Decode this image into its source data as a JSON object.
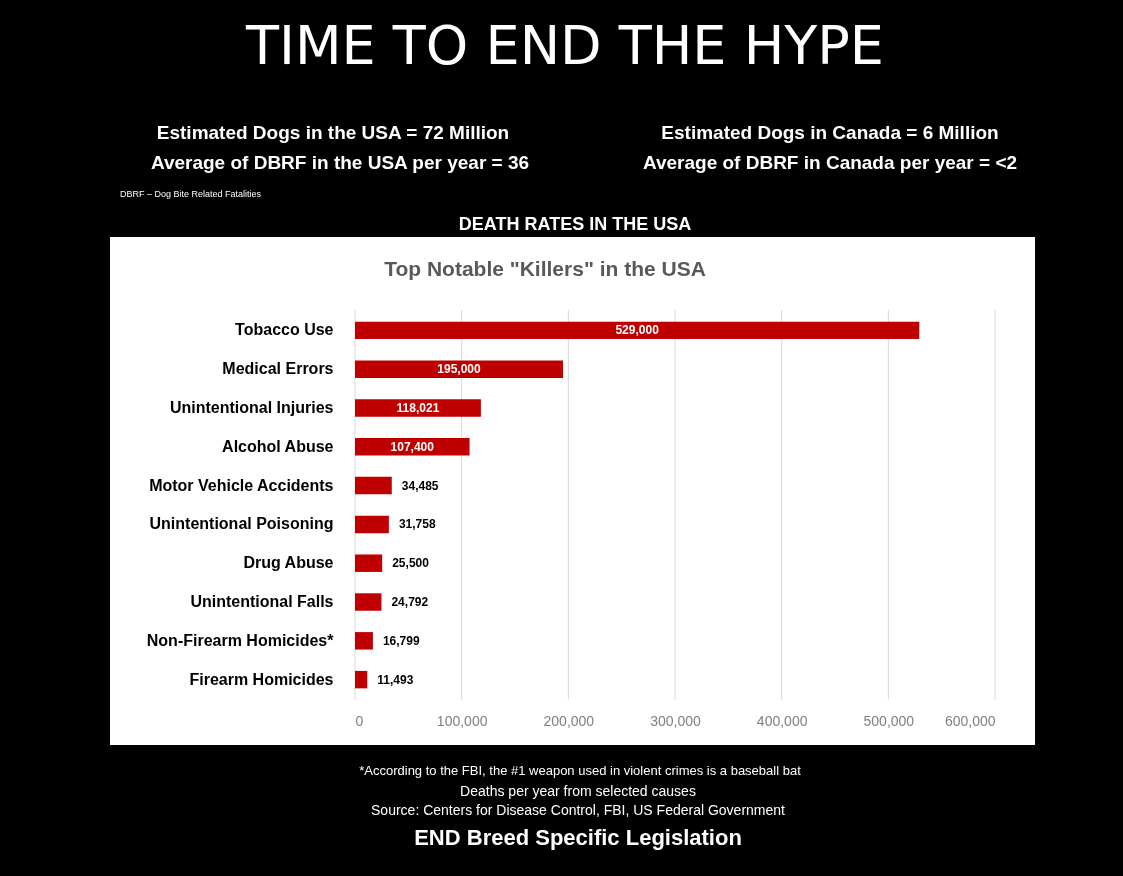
{
  "chart_data": {
    "type": "bar",
    "orientation": "horizontal",
    "title": "Top Notable \"Killers\" in the USA",
    "categories": [
      "Tobacco Use",
      "Medical Errors",
      "Unintentional Injuries",
      "Alcohol Abuse",
      "Motor Vehicle Accidents",
      "Unintentional Poisoning",
      "Drug Abuse",
      "Unintentional Falls",
      "Non-Firearm Homicides*",
      "Firearm Homicides"
    ],
    "values": [
      529000,
      195000,
      118021,
      107400,
      34485,
      31758,
      25500,
      24792,
      16799,
      11493
    ],
    "value_labels": [
      "529,000",
      "195,000",
      "118,021",
      "107,400",
      "34,485",
      "31,758",
      "25,500",
      "24,792",
      "16,799",
      "11,493"
    ],
    "color": "#c00000",
    "grid": "x",
    "xlim": [
      0,
      600000
    ],
    "xticks": [
      0,
      {
        "value": 100000,
        "label": "100,000"
      },
      {
        "value": 200000,
        "label": "200,000"
      },
      {
        "value": 300000,
        "label": "300,000"
      },
      {
        "value": 400000,
        "label": "400,000"
      },
      {
        "value": 500000,
        "label": "500,000"
      },
      {
        "value": 600000,
        "label": "600,000"
      }
    ],
    "annotations": [
      "TIME TO END THE HYPE",
      "Estimated Dogs in the USA = 72 Million",
      "Estimated Dogs in Canada = 6 Million",
      "Average of DBRF in the USA per year = 36",
      "Average of DBRF in Canada per year = <2",
      "DBRF – Dog Bite Related Fatalities",
      "DEATH RATES IN THE USA",
      "*According to the FBI, the #1 weapon used in violent crimes is a baseball bat",
      "Deaths per year from selected causes",
      "Source: Centers for Disease Control, FBI, US Federal Government",
      "END Breed Specific Legislation"
    ]
  }
}
